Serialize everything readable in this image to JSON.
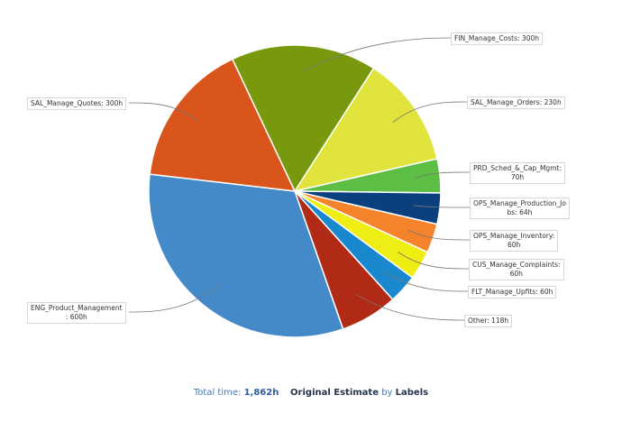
{
  "chart_data": {
    "type": "pie",
    "title": "",
    "unit": "h",
    "slices": [
      {
        "name": "FIN_Manage_Costs",
        "value": 300,
        "label": "FIN_Manage_Costs: 300h",
        "color": "#78990e"
      },
      {
        "name": "SAL_Manage_Orders",
        "value": 230,
        "label": "SAL_Manage_Orders: 230h",
        "color": "#e0e43c"
      },
      {
        "name": "PRD_Sched_&_Cap_Mgmt",
        "value": 70,
        "label": "PRD_Sched_&_Cap_Mgmt: 70h",
        "color": "#5cbe44"
      },
      {
        "name": "OPS_Manage_Production_Jobs",
        "value": 64,
        "label": "OPS_Manage_Production_Jobs: 64h",
        "color": "#0c3f7e"
      },
      {
        "name": "OPS_Manage_Inventory",
        "value": 60,
        "label": "OPS_Manage_Inventory: 60h",
        "color": "#f5832c"
      },
      {
        "name": "CUS_Manage_Complaints",
        "value": 60,
        "label": "CUS_Manage_Complaints: 60h",
        "color": "#eeee14"
      },
      {
        "name": "FLT_Manage_Upfits",
        "value": 60,
        "label": "FLT_Manage_Upfits: 60h",
        "color": "#1a88cf"
      },
      {
        "name": "Other",
        "value": 118,
        "label": "Other: 118h",
        "color": "#b02a16"
      },
      {
        "name": "ENG_Product_Management",
        "value": 600,
        "label": "ENG_Product_Management: 600h",
        "color": "#448ac8"
      },
      {
        "name": "SAL_Manage_Quotes",
        "value": 300,
        "label": "SAL_Manage_Quotes: 300h",
        "color": "#d9551c"
      }
    ]
  },
  "footer": {
    "total_label": "Total time:",
    "total_value": "1,862h",
    "metric": "Original Estimate",
    "by": "by",
    "group": "Labels"
  }
}
